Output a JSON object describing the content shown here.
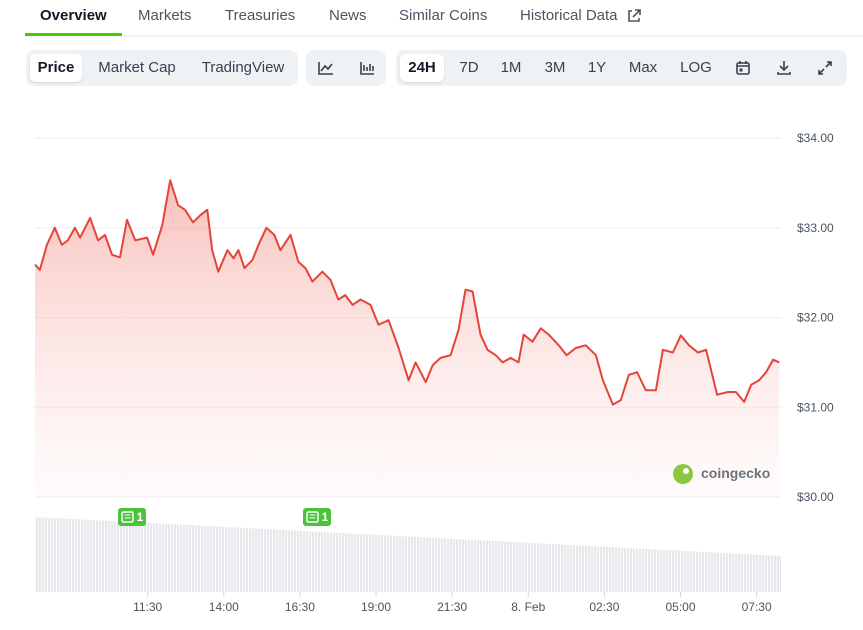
{
  "tabs": [
    "Overview",
    "Markets",
    "Treasuries",
    "News",
    "Similar Coins",
    "Historical Data"
  ],
  "view_buttons": [
    "Price",
    "Market Cap",
    "TradingView"
  ],
  "range_buttons": [
    "24H",
    "7D",
    "1M",
    "3M",
    "1Y",
    "Max",
    "LOG"
  ],
  "watermark": "coingecko",
  "events": [
    {
      "label": "1"
    },
    {
      "label": "1"
    }
  ],
  "chart_data": {
    "type": "line",
    "color": "#e5443a",
    "grid": true,
    "x": [
      7.8,
      7.96,
      8.19,
      8.45,
      8.68,
      8.88,
      9.11,
      9.28,
      9.61,
      9.87,
      10.1,
      10.33,
      10.59,
      10.82,
      11.09,
      11.48,
      11.68,
      11.98,
      12.24,
      12.5,
      12.73,
      12.99,
      13.23,
      13.46,
      13.62,
      13.82,
      14.12,
      14.32,
      14.48,
      14.68,
      14.94,
      15.14,
      15.4,
      15.66,
      15.86,
      16.19,
      16.45,
      16.68,
      16.91,
      17.24,
      17.5,
      17.76,
      17.99,
      18.23,
      18.49,
      18.82,
      19.08,
      19.41,
      19.74,
      20.07,
      20.3,
      20.63,
      20.86,
      21.12,
      21.45,
      21.71,
      21.94,
      22.17,
      22.43,
      22.66,
      22.93,
      23.16,
      23.42,
      23.68,
      23.85,
      24.14,
      24.41,
      24.67,
      25.0,
      25.26,
      25.56,
      25.89,
      26.22,
      26.45,
      26.78,
      27.04,
      27.3,
      27.57,
      27.86,
      28.19,
      28.42,
      28.75,
      29.01,
      29.28,
      29.57,
      29.84,
      30.2,
      30.56,
      30.82,
      31.09,
      31.32,
      31.58,
      31.81,
      32.04,
      32.24
    ],
    "values": [
      32.59,
      32.53,
      32.81,
      33.0,
      32.81,
      32.86,
      33.0,
      32.89,
      33.11,
      32.86,
      32.92,
      32.7,
      32.67,
      33.09,
      32.86,
      32.89,
      32.7,
      33.03,
      33.53,
      33.25,
      33.2,
      33.06,
      33.14,
      33.2,
      32.75,
      32.51,
      32.75,
      32.66,
      32.75,
      32.55,
      32.64,
      32.81,
      33.0,
      32.92,
      32.75,
      32.92,
      32.62,
      32.55,
      32.4,
      32.51,
      32.42,
      32.2,
      32.25,
      32.14,
      32.2,
      32.14,
      31.92,
      31.97,
      31.66,
      31.3,
      31.5,
      31.28,
      31.47,
      31.55,
      31.58,
      31.86,
      32.31,
      32.29,
      31.81,
      31.64,
      31.58,
      31.5,
      31.55,
      31.5,
      31.81,
      31.73,
      31.88,
      31.81,
      31.69,
      31.58,
      31.66,
      31.69,
      31.58,
      31.3,
      31.03,
      31.08,
      31.36,
      31.39,
      31.19,
      31.19,
      31.64,
      31.61,
      31.8,
      31.69,
      31.61,
      31.64,
      31.14,
      31.17,
      31.17,
      31.06,
      31.25,
      31.3,
      31.39,
      31.53,
      31.5
    ],
    "xlim": [
      7.8,
      32.3
    ],
    "xticks": [
      {
        "value": 11.5,
        "label": "11:30"
      },
      {
        "value": 14,
        "label": "14:00"
      },
      {
        "value": 16.5,
        "label": "16:30"
      },
      {
        "value": 19,
        "label": "19:00"
      },
      {
        "value": 21.5,
        "label": "21:30"
      },
      {
        "value": 24,
        "label": "8. Feb"
      },
      {
        "value": 26.5,
        "label": "02:30"
      },
      {
        "value": 29,
        "label": "05:00"
      },
      {
        "value": 31.5,
        "label": "07:30"
      }
    ],
    "ylim": [
      30,
      34
    ],
    "yticks": [
      {
        "value": 30,
        "label": "$30.00"
      },
      {
        "value": 31,
        "label": "$31.00"
      },
      {
        "value": 32,
        "label": "$32.00"
      },
      {
        "value": 33,
        "label": "$33.00"
      },
      {
        "value": 34,
        "label": "$34.00"
      }
    ]
  }
}
